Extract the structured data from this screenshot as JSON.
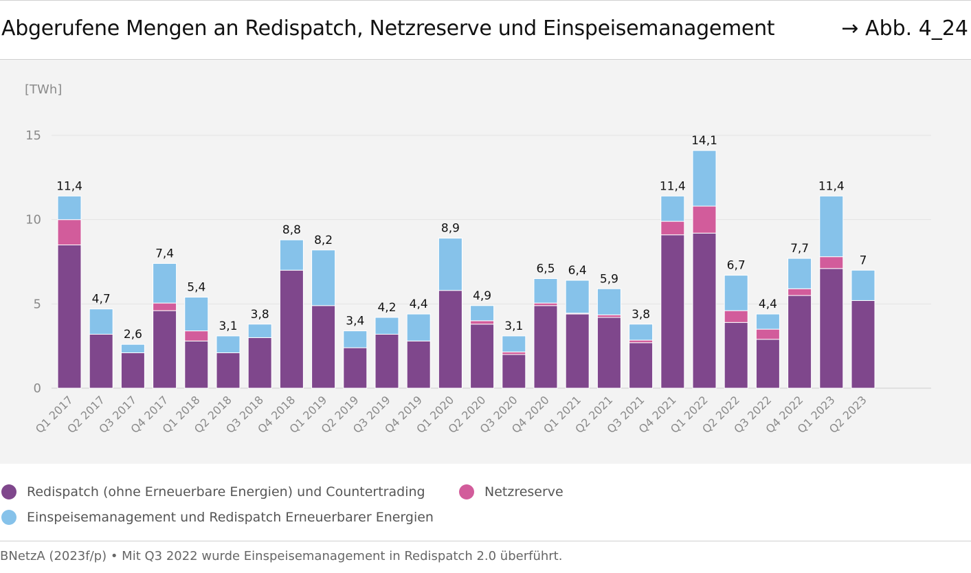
{
  "header": {
    "title": "Abgerufene Mengen an Redispatch, Netzreserve und Einspeisemanagement",
    "figure_ref": "→ Abb. 4_24"
  },
  "colors": {
    "redispatch": "#7f478c",
    "netzreserve": "#d25c9b",
    "einspeise": "#86c2ea",
    "grid": "#e3e3e3",
    "axis_text": "#8a8a8a",
    "background": "#f3f3f3"
  },
  "chart_data": {
    "type": "bar",
    "stacked": true,
    "ylabel": "[TWh]",
    "ylim": [
      0,
      15
    ],
    "yticks": [
      0,
      5,
      10,
      15
    ],
    "grid": true,
    "categories": [
      "Q1 2017",
      "Q2 2017",
      "Q3 2017",
      "Q4 2017",
      "Q1 2018",
      "Q2 2018",
      "Q3 2018",
      "Q4 2018",
      "Q1 2019",
      "Q2 2019",
      "Q3 2019",
      "Q4 2019",
      "Q1 2020",
      "Q2 2020",
      "Q3 2020",
      "Q4 2020",
      "Q1 2021",
      "Q2 2021",
      "Q3 2021",
      "Q4 2021",
      "Q1 2022",
      "Q2 2022",
      "Q3 2022",
      "Q4 2022",
      "Q1 2023",
      "Q2 2023"
    ],
    "series": [
      {
        "name": "Redispatch (ohne Erneuerbare  Energien) und Countertrading",
        "color": "#7f478c",
        "values": [
          8.5,
          3.2,
          2.1,
          4.6,
          2.8,
          2.1,
          3.0,
          7.0,
          4.9,
          2.4,
          3.2,
          2.8,
          5.8,
          3.8,
          2.0,
          4.9,
          4.4,
          4.2,
          2.7,
          9.1,
          9.2,
          3.9,
          2.9,
          5.5,
          7.1,
          5.2
        ]
      },
      {
        "name": "Netzreserve",
        "color": "#d25c9b",
        "values": [
          1.5,
          0.0,
          0.0,
          0.45,
          0.6,
          0.0,
          0.0,
          0.0,
          0.0,
          0.0,
          0.0,
          0.0,
          0.0,
          0.2,
          0.15,
          0.15,
          0.05,
          0.15,
          0.15,
          0.8,
          1.6,
          0.7,
          0.6,
          0.4,
          0.7,
          0.0
        ]
      },
      {
        "name": "Einspeisemanagement und Redispatch Erneuerbarer Energien",
        "color": "#86c2ea",
        "values": [
          1.4,
          1.5,
          0.5,
          2.35,
          2.0,
          1.0,
          0.8,
          1.8,
          3.3,
          1.0,
          1.0,
          1.6,
          3.1,
          0.9,
          0.95,
          1.45,
          1.95,
          1.55,
          0.95,
          1.5,
          3.3,
          2.1,
          0.9,
          1.8,
          3.6,
          1.8
        ]
      }
    ],
    "totals": [
      11.4,
      4.7,
      2.6,
      7.4,
      5.4,
      3.1,
      3.8,
      8.8,
      8.2,
      3.4,
      4.2,
      4.4,
      8.9,
      4.9,
      3.1,
      6.5,
      6.4,
      5.9,
      3.8,
      11.4,
      14.1,
      6.7,
      4.4,
      7.7,
      11.4,
      7.0
    ],
    "total_labels": [
      "11,4",
      "4,7",
      "2,6",
      "7,4",
      "5,4",
      "3,1",
      "3,8",
      "8,8",
      "8,2",
      "3,4",
      "4,2",
      "4,4",
      "8,9",
      "4,9",
      "3,1",
      "6,5",
      "6,4",
      "5,9",
      "3,8",
      "11,4",
      "14,1",
      "6,7",
      "4,4",
      "7,7",
      "11,4",
      "7"
    ],
    "legend_position": "bottom"
  },
  "legend": {
    "items": [
      {
        "label": "Redispatch (ohne Erneuerbare  Energien) und Countertrading",
        "color": "#7f478c"
      },
      {
        "label": "Netzreserve",
        "color": "#d25c9b"
      },
      {
        "label": "Einspeisemanagement und Redispatch Erneuerbarer Energien",
        "color": "#86c2ea"
      }
    ]
  },
  "footer": {
    "source": "BNetzA (2023f/p) • Mit Q3 2022 wurde Einspeisemanagement in Redispatch 2.0 überführt."
  }
}
